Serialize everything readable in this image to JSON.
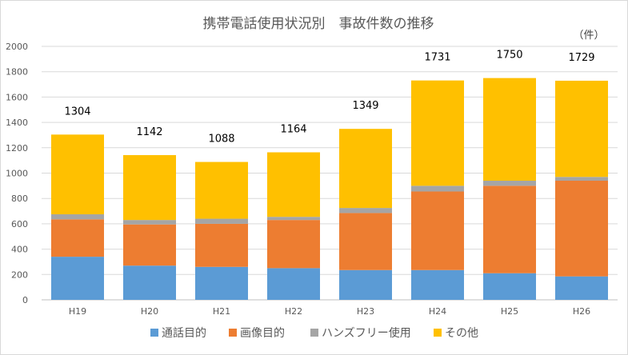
{
  "chart_data": {
    "type": "bar",
    "stacked": true,
    "title": "携帯電話使用状況別　事故件数の推移",
    "unit_label": "（件）",
    "categories": [
      "H19",
      "H20",
      "H21",
      "H22",
      "H23",
      "H24",
      "H25",
      "H26"
    ],
    "series": [
      {
        "name": "通話目的",
        "color": "#5b9bd5",
        "values": [
          340,
          270,
          260,
          250,
          235,
          235,
          210,
          185
        ]
      },
      {
        "name": "画像目的",
        "color": "#ed7d31",
        "values": [
          295,
          325,
          340,
          380,
          450,
          620,
          690,
          755
        ]
      },
      {
        "name": "ハンズフリー使用",
        "color": "#a5a5a5",
        "values": [
          40,
          35,
          40,
          25,
          40,
          45,
          40,
          30
        ]
      },
      {
        "name": "その他",
        "color": "#ffc000",
        "values": [
          629,
          512,
          448,
          509,
          624,
          831,
          810,
          759
        ]
      }
    ],
    "totals": [
      "1304",
      "1142",
      "1088",
      "1164",
      "1349",
      "1731",
      "1750",
      "1729"
    ],
    "ylim": [
      0,
      2000
    ],
    "yticks": [
      "0",
      "200",
      "400",
      "600",
      "800",
      "1000",
      "1200",
      "1400",
      "1600",
      "1800",
      "2000"
    ],
    "grid": true,
    "legend": "bottom"
  }
}
